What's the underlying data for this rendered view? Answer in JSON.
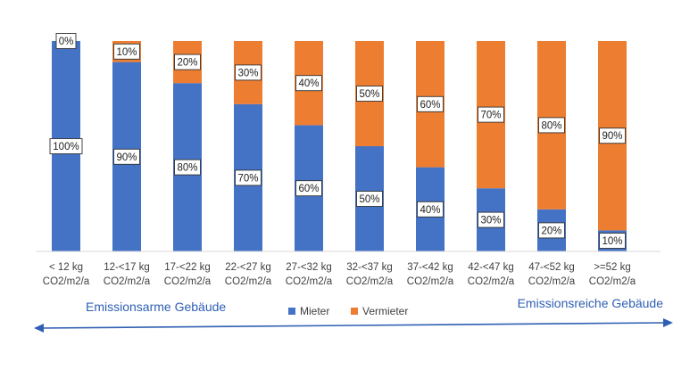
{
  "chart_data": {
    "type": "bar",
    "stacked": true,
    "percent": true,
    "categories": [
      [
        "< 12 kg",
        "CO2/m2/a"
      ],
      [
        "12-<17 kg",
        "CO2/m2/a"
      ],
      [
        "17-<22 kg",
        "CO2/m2/a"
      ],
      [
        "22-<27 kg",
        "CO2/m2/a"
      ],
      [
        "27-<32 kg",
        "CO2/m2/a"
      ],
      [
        "32-<37 kg",
        "CO2/m2/a"
      ],
      [
        "37-<42 kg",
        "CO2/m2/a"
      ],
      [
        "42-<47 kg",
        "CO2/m2/a"
      ],
      [
        "47-<52 kg",
        "CO2/m2/a"
      ],
      [
        ">=52 kg",
        "CO2/m2/a"
      ]
    ],
    "series": [
      {
        "name": "Mieter",
        "color": "#4472C4",
        "values": [
          100,
          90,
          80,
          70,
          60,
          50,
          40,
          30,
          20,
          10
        ]
      },
      {
        "name": "Vermieter",
        "color": "#ED7D31",
        "values": [
          0,
          10,
          20,
          30,
          40,
          50,
          60,
          70,
          80,
          90
        ]
      }
    ],
    "ylim": [
      0,
      100
    ],
    "legend": "bottom",
    "grid": false,
    "annotations": {
      "left": "Emissionsarme Gebäude",
      "right": "Emissionsreiche Gebäude"
    },
    "arrow": "double-headed, left to right"
  }
}
